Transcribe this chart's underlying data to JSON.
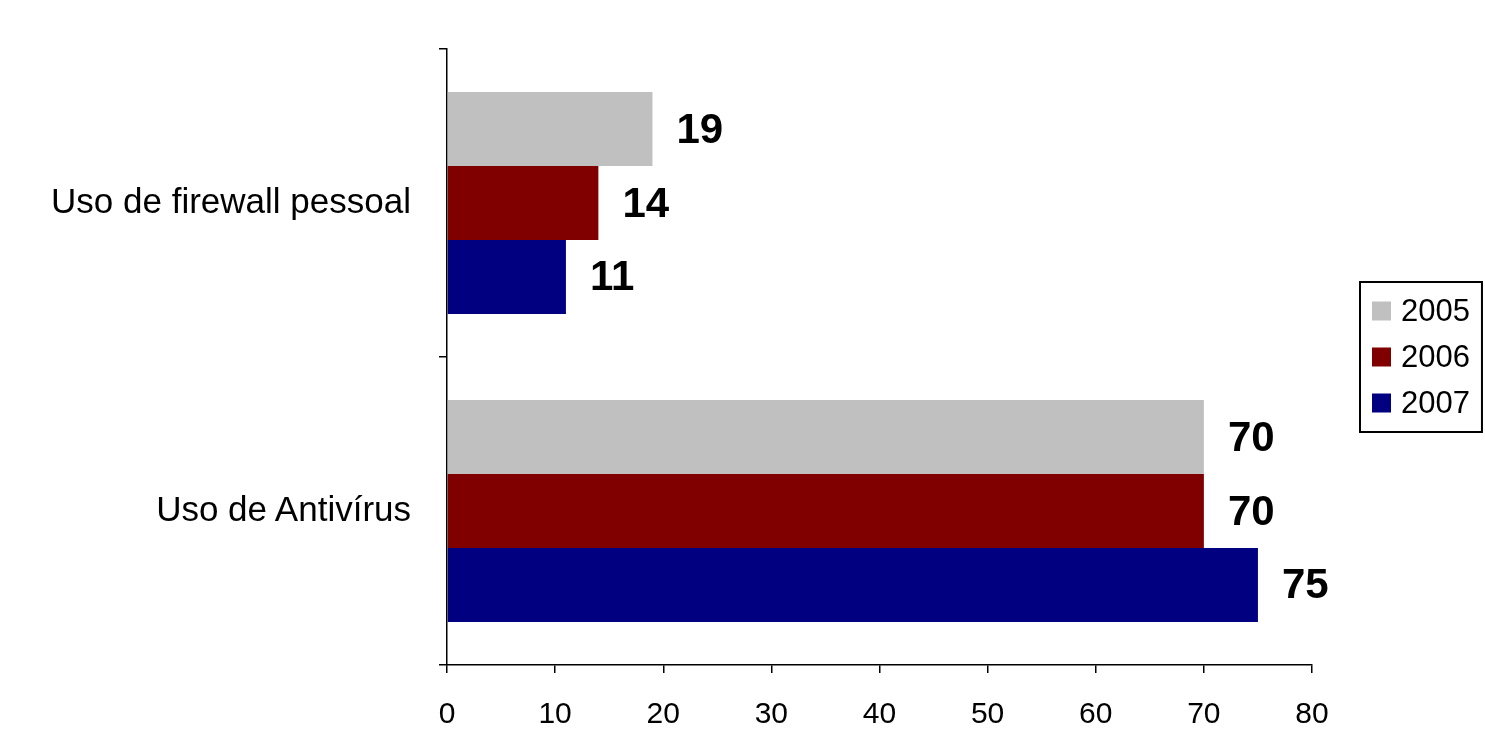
{
  "chart_data": {
    "type": "bar",
    "orientation": "horizontal",
    "categories": [
      "Uso de firewall pessoal",
      "Uso de Antivírus"
    ],
    "series": [
      {
        "name": "2005",
        "color": "#c0c0c0",
        "values": [
          19,
          70
        ]
      },
      {
        "name": "2006",
        "color": "#800000",
        "values": [
          14,
          70
        ]
      },
      {
        "name": "2007",
        "color": "#000080",
        "values": [
          11,
          75
        ]
      }
    ],
    "xlim": [
      0,
      80
    ],
    "xticks": [
      0,
      10,
      20,
      30,
      40,
      50,
      60,
      70,
      80
    ],
    "data_labels": true,
    "legend": "right"
  }
}
